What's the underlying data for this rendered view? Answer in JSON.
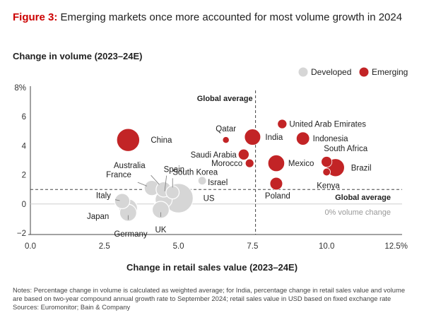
{
  "figure": {
    "label": "Figure 3:",
    "title": "Emerging markets once more accounted for most volume growth in 2024"
  },
  "chart_data": {
    "type": "scatter",
    "ylabel": "Change in volume (2023–24E)",
    "xlabel": "Change in retail sales value (2023–24E)",
    "xlim": [
      0,
      12.5
    ],
    "ylim": [
      -2,
      8
    ],
    "x_ticks": [
      "0.0",
      "2.5",
      "5.0",
      "7.5",
      "10.0",
      "12.5%"
    ],
    "y_ticks": [
      "8%",
      "6",
      "4",
      "2",
      "0",
      "−2"
    ],
    "legend": {
      "placement": "top-right",
      "items": [
        {
          "name": "Developed",
          "color": "#d6d6d6"
        },
        {
          "name": "Emerging",
          "color": "#c22426"
        }
      ]
    },
    "colors": {
      "developed": "#d6d6d6",
      "developed_stroke": "#ffffff",
      "emerging": "#c22426"
    },
    "reference_lines": {
      "global_average_x": 7.6,
      "global_average_x_label": "Global average",
      "global_average_y": 1.0,
      "global_average_y_label": "Global average",
      "zero_label": "0% volume change"
    },
    "series": [
      {
        "name": "Developed",
        "points": [
          {
            "label": "US",
            "x": 5.0,
            "y": 0.4,
            "size": 30
          },
          {
            "label": "Japan",
            "x": 3.3,
            "y": -0.3,
            "size": 12
          },
          {
            "label": "Germany",
            "x": 3.3,
            "y": -0.6,
            "size": 10
          },
          {
            "label": "Italy",
            "x": 3.1,
            "y": 0.2,
            "size": 8
          },
          {
            "label": "France",
            "x": 4.1,
            "y": 1.1,
            "size": 8
          },
          {
            "label": "Australia",
            "x": 4.5,
            "y": 1.0,
            "size": 8
          },
          {
            "label": "Spain",
            "x": 4.5,
            "y": 0.3,
            "size": 10
          },
          {
            "label": "South Korea",
            "x": 4.8,
            "y": 0.8,
            "size": 6
          },
          {
            "label": "UK",
            "x": 4.4,
            "y": -0.4,
            "size": 10
          },
          {
            "label": "Israel",
            "x": 5.8,
            "y": 1.6,
            "size": 2.5
          }
        ]
      },
      {
        "name": "Emerging",
        "points": [
          {
            "label": "China",
            "x": 3.3,
            "y": 4.4,
            "size": 18
          },
          {
            "label": "India",
            "x": 7.5,
            "y": 4.6,
            "size": 9
          },
          {
            "label": "Qatar",
            "x": 6.6,
            "y": 4.4,
            "size": 1.5
          },
          {
            "label": "Saudi Arabia",
            "x": 7.2,
            "y": 3.4,
            "size": 4
          },
          {
            "label": "Morocco",
            "x": 7.4,
            "y": 2.8,
            "size": 2.5
          },
          {
            "label": "United Arab Emirates",
            "x": 8.5,
            "y": 5.5,
            "size": 3
          },
          {
            "label": "Indonesia",
            "x": 9.2,
            "y": 4.5,
            "size": 6
          },
          {
            "label": "South Africa",
            "x": 10.0,
            "y": 2.9,
            "size": 4
          },
          {
            "label": "Mexico",
            "x": 8.3,
            "y": 2.8,
            "size": 9.5
          },
          {
            "label": "Brazil",
            "x": 10.3,
            "y": 2.5,
            "size": 11
          },
          {
            "label": "Kenya",
            "x": 10.0,
            "y": 2.2,
            "size": 2
          },
          {
            "label": "Poland",
            "x": 8.3,
            "y": 1.4,
            "size": 5.5
          }
        ]
      }
    ]
  },
  "notes": [
    "Notes: Percentage change in volume is calculated as weighted average; for India, percentage change in retail sales value and volume are based on two-year compound annual growth rate to September 2024; retail sales value in USD based on fixed exchange rate",
    "Sources: Euromonitor; Bain & Company"
  ]
}
